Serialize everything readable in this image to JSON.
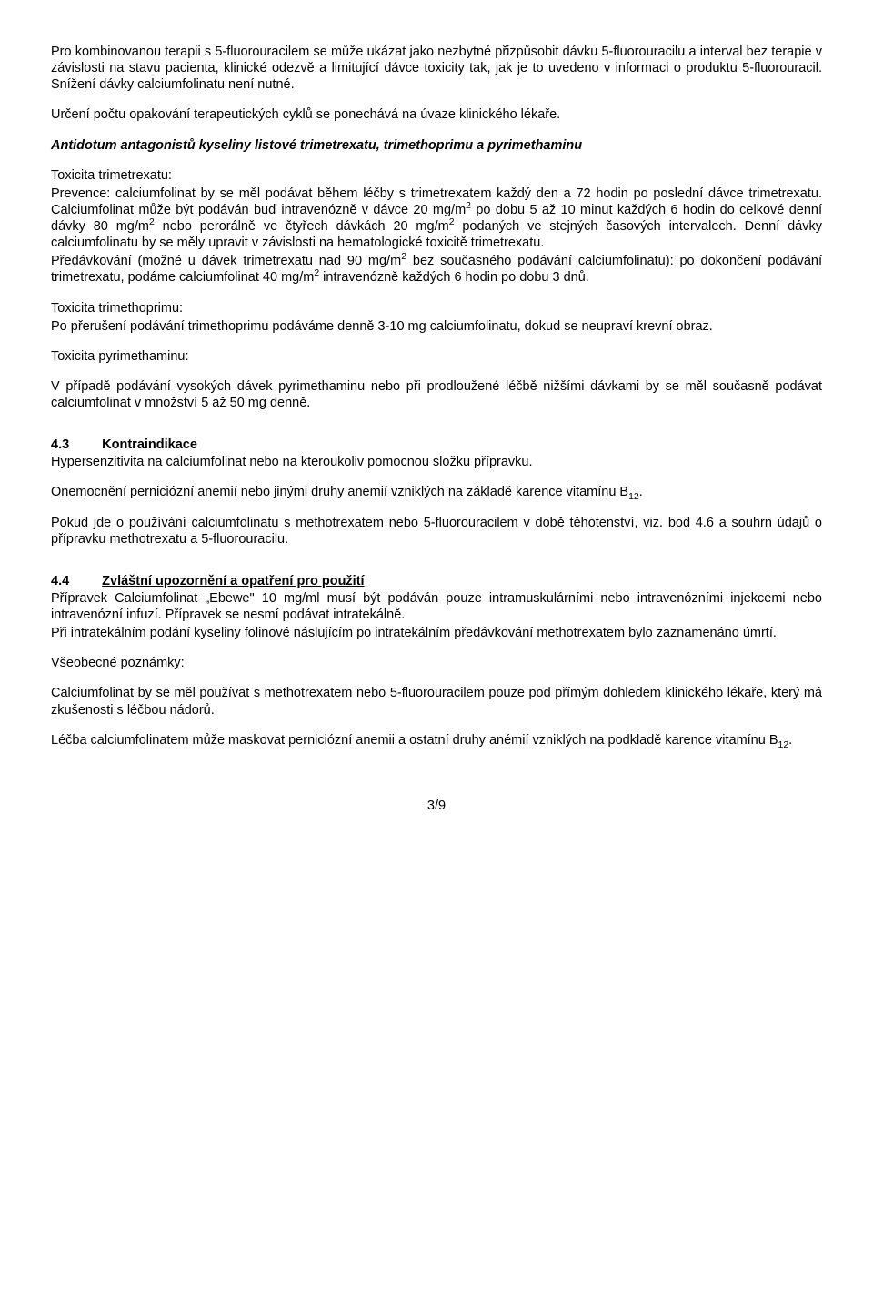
{
  "p1": "Pro kombinovanou terapii s 5-fluorouracilem se může ukázat jako nezbytné přizpůsobit dávku 5-fluorouracilu a interval bez terapie v závislosti na stavu pacienta, klinické odezvě a limitující dávce toxicity tak, jak je to uvedeno v informaci o produktu 5-fluorouracil. Snížení dávky calciumfolinatu není nutné.",
  "p2": "Určení počtu opakování terapeutických cyklů se ponechává na úvaze klinického lékaře.",
  "h_antidote": "Antidotum antagonistů kyseliny listové trimetrexatu, trimethoprimu a pyrimethaminu",
  "tox_trimetrexatu_label": "Toxicita trimetrexatu:",
  "p3a": "Prevence: calciumfolinat by se měl podávat během léčby s trimetrexatem každý den a 72 hodin po poslední dávce trimetrexatu. Calciumfolinat může být podáván buď intravenózně v dávce 20 mg/m",
  "p3b": " po dobu 5 až 10 minut každých 6 hodin do celkové denní dávky 80 mg/m",
  "p3c": " nebo perorálně ve čtyřech dávkách 20 mg/m",
  "p3d": " podaných ve stejných časových intervalech. Denní dávky calciumfolinatu by se měly upravit v závislosti na hematologické toxicitě trimetrexatu.",
  "p4a": "Předávkování (možné u dávek trimetrexatu nad 90 mg/m",
  "p4b": " bez současného podávání calciumfolinatu): po dokončení podávání trimetrexatu, podáme calciumfolinat 40 mg/m",
  "p4c": " intravenózně každých 6 hodin po dobu 3 dnů.",
  "tox_trimethoprimu_label": "Toxicita trimethoprimu:",
  "p5": "Po přerušení podávání trimethoprimu podáváme denně 3-10 mg calciumfolinatu, dokud se neupraví krevní obraz.",
  "tox_pyrimethaminu_label": "Toxicita pyrimethaminu:",
  "p6": "V případě podávání vysokých dávek pyrimethaminu nebo při prodloužené léčbě nižšími dávkami by se měl současně podávat calciumfolinat v množství 5 až 50 mg denně.",
  "s43_num": "4.3",
  "s43_title": "Kontraindikace",
  "p7": "Hypersenzitivita na calciumfolinat nebo na kteroukoliv pomocnou složku přípravku.",
  "p8a": "Onemocnění perniciózní anemií nebo jinými druhy anemií vzniklých na základě karence vitamínu B",
  "p8b": ".",
  "p9": "Pokud jde o používání calciumfolinatu s methotrexatem nebo 5-fluorouracilem v době těhotenství, viz. bod 4.6 a souhrn údajů o přípravku methotrexatu a 5-fluorouracilu.",
  "s44_num": "4.4",
  "s44_title": "Zvláštní upozornění a opatření pro použití",
  "p10": "Přípravek Calciumfolinat „Ebewe\" 10 mg/ml musí být podáván pouze intramuskulárními nebo intravenózními injekcemi nebo intravenózní infuzí. Přípravek se nesmí podávat intratekálně.",
  "p11": "Při intratekálním podání kyseliny folinové náslujícím po intratekálním předávkování methotrexatem bylo zaznamenáno úmrtí.",
  "general_notes": "Všeobecné poznámky:",
  "p12": "Calciumfolinat by se měl používat s methotrexatem nebo 5-fluorouracilem pouze pod přímým dohledem klinického lékaře, který má zkušenosti s léčbou nádorů.",
  "p13a": "Léčba calciumfolinatem může maskovat perniciózní anemii a ostatní druhy anémií vzniklých na podkladě karence vitamínu B",
  "p13b": ".",
  "sup2": "2",
  "sub12": "12",
  "page": "3/9"
}
